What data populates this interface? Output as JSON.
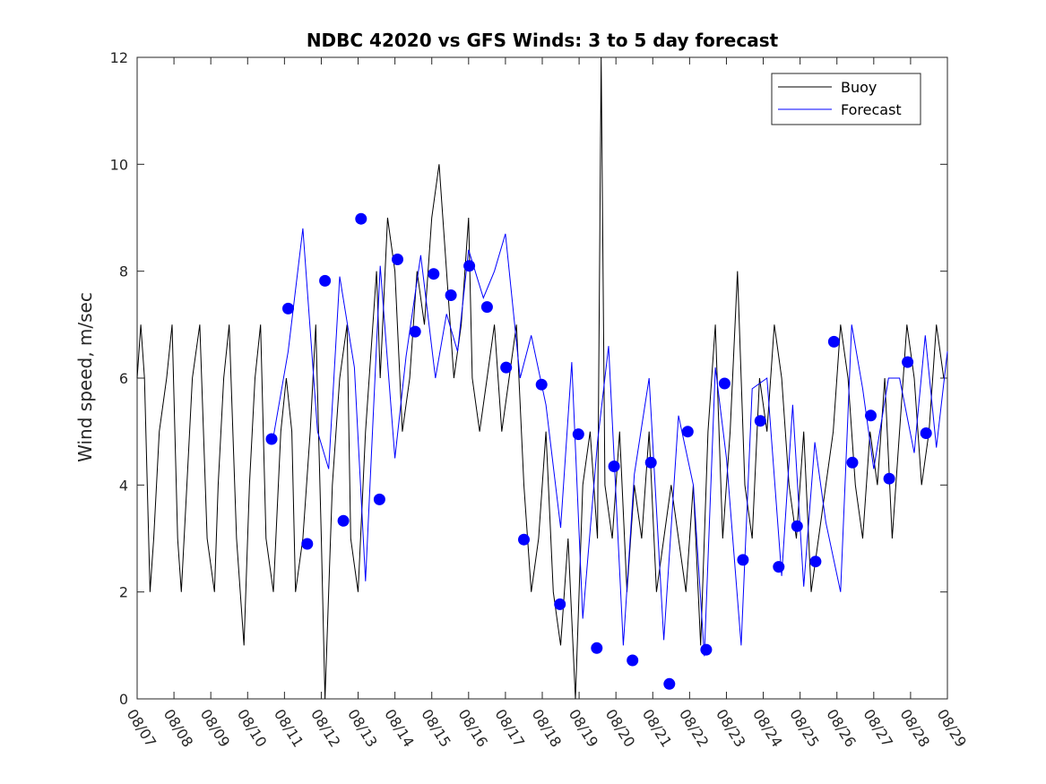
{
  "chart_data": {
    "type": "line",
    "title": "NDBC 42020 vs GFS Winds: 3 to 5 day forecast",
    "xlabel": "",
    "ylabel": "Wind speed, m/sec",
    "ylim": [
      0,
      12
    ],
    "yticks": [
      0,
      2,
      4,
      6,
      8,
      10,
      12
    ],
    "xlim": [
      0,
      22
    ],
    "x_tick_labels": [
      "08/07",
      "08/08",
      "08/09",
      "08/10",
      "08/11",
      "08/12",
      "08/13",
      "08/14",
      "08/15",
      "08/16",
      "08/17",
      "08/18",
      "08/19",
      "08/20",
      "08/21",
      "08/22",
      "08/23",
      "08/24",
      "08/25",
      "08/26",
      "08/27",
      "08/28",
      "08/29"
    ],
    "legend": {
      "position": "top-right",
      "entries": [
        {
          "name": "Buoy",
          "color": "#000000"
        },
        {
          "name": "Forecast",
          "color": "#0000ff"
        }
      ]
    },
    "series": [
      {
        "name": "Buoy",
        "color": "#000000",
        "x_days": [
          0.0,
          0.1,
          0.2,
          0.35,
          0.45,
          0.6,
          0.8,
          0.95,
          1.1,
          1.2,
          1.35,
          1.5,
          1.7,
          1.9,
          2.1,
          2.2,
          2.35,
          2.5,
          2.7,
          2.9,
          3.05,
          3.2,
          3.35,
          3.5,
          3.7,
          3.9,
          4.05,
          4.2,
          4.3,
          4.5,
          4.7,
          4.85,
          5.0,
          5.1,
          5.3,
          5.5,
          5.7,
          5.8,
          6.0,
          6.2,
          6.4,
          6.5,
          6.6,
          6.8,
          7.0,
          7.2,
          7.4,
          7.6,
          7.8,
          8.0,
          8.2,
          8.4,
          8.6,
          8.8,
          9.0,
          9.1,
          9.3,
          9.5,
          9.7,
          9.9,
          10.1,
          10.3,
          10.5,
          10.7,
          10.9,
          11.1,
          11.3,
          11.5,
          11.7,
          11.9,
          12.1,
          12.3,
          12.5,
          12.6,
          12.7,
          12.9,
          13.1,
          13.3,
          13.5,
          13.7,
          13.9,
          14.1,
          14.3,
          14.5,
          14.7,
          14.9,
          15.1,
          15.3,
          15.5,
          15.7,
          15.9,
          16.1,
          16.3,
          16.5,
          16.7,
          16.9,
          17.1,
          17.3,
          17.5,
          17.7,
          17.9,
          18.1,
          18.3,
          18.5,
          18.7,
          18.9,
          19.1,
          19.3,
          19.5,
          19.7,
          19.9,
          20.1,
          20.3,
          20.5,
          20.7,
          20.9,
          21.1,
          21.3,
          21.5,
          21.7,
          21.9
        ],
        "values": [
          6,
          7,
          6,
          2,
          3,
          5,
          6,
          7,
          3,
          2,
          4,
          6,
          7,
          3,
          2,
          4,
          6,
          7,
          3,
          1,
          4,
          6,
          7,
          3,
          2,
          5,
          6,
          5,
          2,
          3,
          5,
          7,
          3,
          0,
          4,
          6,
          7,
          3,
          2,
          5,
          7,
          8,
          6,
          9,
          8,
          5,
          6,
          8,
          7,
          9,
          10,
          8,
          6,
          7,
          9,
          6,
          5,
          6,
          7,
          5,
          6,
          7,
          4,
          2,
          3,
          5,
          2,
          1,
          3,
          0,
          4,
          5,
          3,
          12,
          4,
          3,
          5,
          2,
          4,
          3,
          5,
          2,
          3,
          4,
          3,
          2,
          4,
          1,
          5,
          7,
          3,
          5,
          8,
          4,
          3,
          6,
          5,
          7,
          6,
          4,
          3,
          5,
          2,
          3,
          4,
          5,
          7,
          6,
          4,
          3,
          5,
          4,
          6,
          3,
          5,
          7,
          6,
          4,
          5,
          7,
          6
        ],
        "markers": false
      },
      {
        "name": "Forecast",
        "color": "#0000ff",
        "x_days": [
          3.7,
          4.1,
          4.5,
          4.9,
          5.2,
          5.5,
          5.9,
          6.2,
          6.6,
          7.0,
          7.3,
          7.7,
          8.1,
          8.4,
          8.7,
          9.0,
          9.4,
          9.7,
          10.0,
          10.4,
          10.7,
          11.1,
          11.5,
          11.8,
          12.1,
          12.5,
          12.8,
          13.2,
          13.5,
          13.9,
          14.3,
          14.7,
          15.1,
          15.4,
          15.7,
          16.0,
          16.4,
          16.7,
          17.1,
          17.5,
          17.8,
          18.1,
          18.4,
          18.7,
          19.1,
          19.4,
          19.7,
          20.0,
          20.4,
          20.7,
          21.1,
          21.4,
          21.7,
          22.0
        ],
        "values": [
          4.9,
          6.5,
          8.8,
          5.0,
          4.3,
          7.9,
          6.2,
          2.2,
          8.1,
          4.5,
          6.4,
          8.3,
          6.0,
          7.2,
          6.5,
          8.4,
          7.5,
          8.0,
          8.7,
          6.0,
          6.8,
          5.5,
          3.2,
          6.3,
          1.5,
          4.8,
          6.6,
          1.0,
          4.2,
          6.0,
          1.1,
          5.3,
          4.0,
          0.8,
          6.2,
          4.5,
          1.0,
          5.8,
          6.0,
          2.3,
          5.5,
          2.1,
          4.8,
          3.3,
          2.0,
          7.0,
          5.8,
          4.3,
          6.0,
          6.0,
          4.6,
          6.8,
          4.7,
          6.5
        ],
        "marker_points": [
          {
            "x": 3.65,
            "y": 4.86
          },
          {
            "x": 4.1,
            "y": 7.3
          },
          {
            "x": 4.62,
            "y": 2.9
          },
          {
            "x": 5.1,
            "y": 7.82
          },
          {
            "x": 5.6,
            "y": 3.33
          },
          {
            "x": 6.08,
            "y": 8.98
          },
          {
            "x": 6.58,
            "y": 3.73
          },
          {
            "x": 7.07,
            "y": 8.22
          },
          {
            "x": 7.55,
            "y": 6.87
          },
          {
            "x": 8.05,
            "y": 7.95
          },
          {
            "x": 8.52,
            "y": 7.55
          },
          {
            "x": 9.02,
            "y": 8.1
          },
          {
            "x": 9.5,
            "y": 7.33
          },
          {
            "x": 10.02,
            "y": 6.2
          },
          {
            "x": 10.5,
            "y": 2.98
          },
          {
            "x": 10.98,
            "y": 5.88
          },
          {
            "x": 11.48,
            "y": 1.77
          },
          {
            "x": 11.98,
            "y": 4.95
          },
          {
            "x": 12.48,
            "y": 0.95
          },
          {
            "x": 12.95,
            "y": 4.35
          },
          {
            "x": 13.45,
            "y": 0.72
          },
          {
            "x": 13.95,
            "y": 4.42
          },
          {
            "x": 14.45,
            "y": 0.28
          },
          {
            "x": 14.95,
            "y": 5.0
          },
          {
            "x": 15.45,
            "y": 0.92
          },
          {
            "x": 15.95,
            "y": 5.9
          },
          {
            "x": 16.45,
            "y": 2.6
          },
          {
            "x": 16.92,
            "y": 5.2
          },
          {
            "x": 17.42,
            "y": 2.47
          },
          {
            "x": 17.92,
            "y": 3.23
          },
          {
            "x": 18.42,
            "y": 2.57
          },
          {
            "x": 18.92,
            "y": 6.68
          },
          {
            "x": 19.42,
            "y": 4.42
          },
          {
            "x": 19.92,
            "y": 5.3
          },
          {
            "x": 20.42,
            "y": 4.12
          },
          {
            "x": 20.92,
            "y": 6.3
          },
          {
            "x": 21.42,
            "y": 4.97
          }
        ]
      }
    ]
  }
}
